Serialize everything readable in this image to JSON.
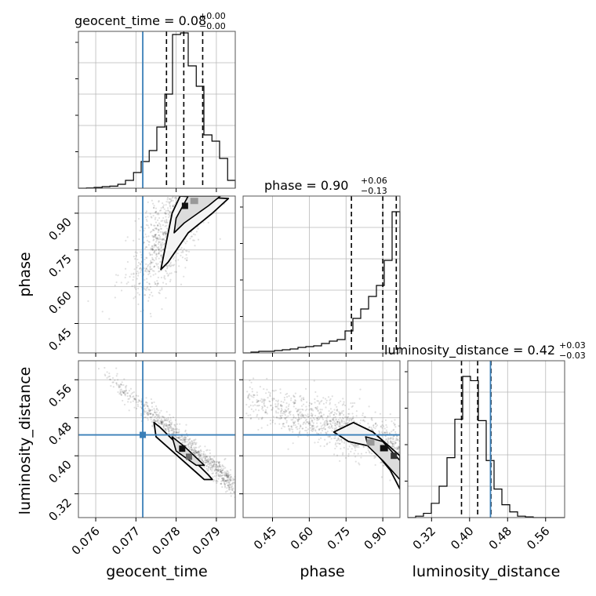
{
  "chart_data": {
    "type": "corner",
    "parameters": [
      "geocent_time",
      "phase",
      "luminosity_distance"
    ],
    "truth_color": "#3a7fb8",
    "titles": [
      {
        "param": "geocent_time",
        "text": "geocent_time = 0.08",
        "plus": "+0.00",
        "minus": "−0.00"
      },
      {
        "param": "phase",
        "text": "phase = 0.90",
        "plus": "+0.06",
        "minus": "−0.13"
      },
      {
        "param": "luminosity_distance",
        "text": "luminosity_distance = 0.42",
        "plus": "+0.03",
        "minus": "−0.03"
      }
    ],
    "ranges": {
      "geocent_time": [
        0.07557,
        0.07947
      ],
      "phase": [
        0.33,
        0.97
      ],
      "luminosity_distance": [
        0.27,
        0.6
      ]
    },
    "ticks": {
      "geocent_time": [
        0.076,
        0.077,
        0.078,
        0.079
      ],
      "phase": [
        0.45,
        0.6,
        0.75,
        0.9
      ],
      "luminosity_distance": [
        0.32,
        0.4,
        0.48,
        0.56
      ]
    },
    "tick_labels": {
      "geocent_time": [
        "0.076",
        "0.077",
        "0.078",
        "0.079"
      ],
      "phase": [
        "0.45",
        "0.60",
        "0.75",
        "0.90"
      ],
      "luminosity_distance": [
        "0.32",
        "0.40",
        "0.48",
        "0.56"
      ]
    },
    "truths": {
      "geocent_time": 0.07717,
      "luminosity_distance": 0.444
    },
    "quantiles": {
      "geocent_time": [
        0.07776,
        0.07819,
        0.07866
      ],
      "phase": [
        0.772,
        0.9,
        0.955
      ],
      "luminosity_distance": [
        0.383,
        0.417,
        0.445
      ]
    },
    "histograms": {
      "geocent_time": {
        "edges": [
          0.07557,
          0.07577,
          0.07596,
          0.07616,
          0.07635,
          0.07655,
          0.07674,
          0.07694,
          0.07713,
          0.07733,
          0.07752,
          0.07772,
          0.07791,
          0.07811,
          0.0783,
          0.0785,
          0.07869,
          0.07889,
          0.07908,
          0.07928,
          0.07947
        ],
        "counts": [
          0.0,
          0.002,
          0.005,
          0.01,
          0.013,
          0.025,
          0.05,
          0.1,
          0.17,
          0.24,
          0.39,
          0.6,
          0.98,
          0.99,
          0.78,
          0.65,
          0.34,
          0.3,
          0.19,
          0.05
        ],
        "ylim": [
          0,
          1.0
        ]
      },
      "phase": {
        "edges": [
          0.33,
          0.362,
          0.394,
          0.426,
          0.458,
          0.49,
          0.522,
          0.554,
          0.586,
          0.618,
          0.65,
          0.682,
          0.714,
          0.746,
          0.778,
          0.81,
          0.842,
          0.874,
          0.906,
          0.938,
          0.97
        ],
        "counts": [
          0.0,
          0.005,
          0.01,
          0.01,
          0.015,
          0.02,
          0.025,
          0.035,
          0.04,
          0.045,
          0.06,
          0.075,
          0.085,
          0.14,
          0.22,
          0.28,
          0.36,
          0.43,
          0.59,
          0.9
        ],
        "ylim": [
          0,
          1.0
        ]
      },
      "luminosity_distance": {
        "edges": [
          0.27,
          0.2865,
          0.303,
          0.3195,
          0.336,
          0.3525,
          0.369,
          0.3855,
          0.402,
          0.4185,
          0.435,
          0.4515,
          0.468,
          0.4845,
          0.501,
          0.5175,
          0.534,
          0.5505,
          0.567,
          0.5835,
          0.6
        ],
        "counts": [
          0.0,
          0.01,
          0.03,
          0.1,
          0.22,
          0.42,
          0.69,
          0.99,
          0.96,
          0.68,
          0.4,
          0.2,
          0.09,
          0.04,
          0.01,
          0.005,
          0.0,
          0.0,
          0.0,
          0.0
        ],
        "ylim": [
          0,
          1.1
        ]
      }
    },
    "scatter_pairs": [
      {
        "x": "geocent_time",
        "y": "phase"
      },
      {
        "x": "geocent_time",
        "y": "luminosity_distance"
      },
      {
        "x": "phase",
        "y": "luminosity_distance"
      }
    ]
  }
}
